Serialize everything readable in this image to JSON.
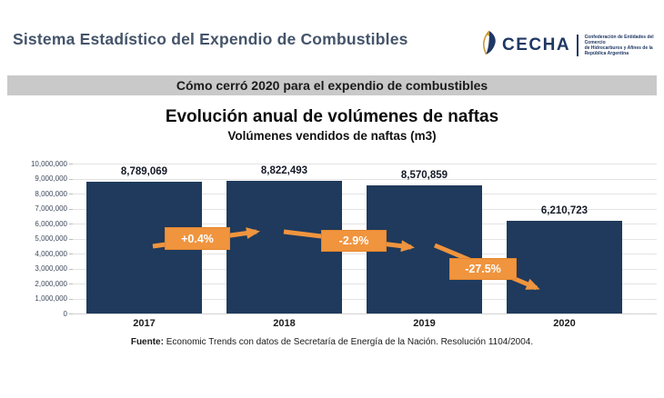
{
  "header": {
    "title": "Sistema Estadístico del Expendio de Combustibles",
    "logo": {
      "name": "CECHA",
      "tagline_lines": [
        "Confederación de Entidades del Comercio",
        "de Hidrocarburos y Afines de la",
        "República Argentina"
      ]
    }
  },
  "banner": {
    "text": "Cómo cerró 2020 para el expendio de combustibles"
  },
  "chart_data": {
    "type": "bar",
    "title": "Evolución anual de volúmenes de naftas",
    "subtitle": "Volúmenes vendidos de naftas (m3)",
    "categories": [
      "2017",
      "2018",
      "2019",
      "2020"
    ],
    "values": [
      8789069,
      8822493,
      8570859,
      6210723
    ],
    "value_labels": [
      "8,789,069",
      "8,822,493",
      "8,570,859",
      "6,210,723"
    ],
    "pct_changes": [
      "+0.4%",
      "-2.9%",
      "-27.5%"
    ],
    "xlabel": "",
    "ylabel": "",
    "ylim": [
      0,
      10000000
    ],
    "ytick_step": 1000000,
    "ytick_labels": [
      "0",
      "1,000,000",
      "2,000,000",
      "3,000,000",
      "4,000,000",
      "5,000,000",
      "6,000,000",
      "7,000,000",
      "8,000,000",
      "9,000,000",
      "10,000,000"
    ],
    "grid": true,
    "legend": false,
    "bar_color": "#1F3A5C",
    "accent_color": "#F0943E"
  },
  "footer": {
    "prefix": "Fuente:",
    "text": " Economic Trends con datos de Secretaría de Energía de la Nación. Resolución 1104/2004."
  }
}
